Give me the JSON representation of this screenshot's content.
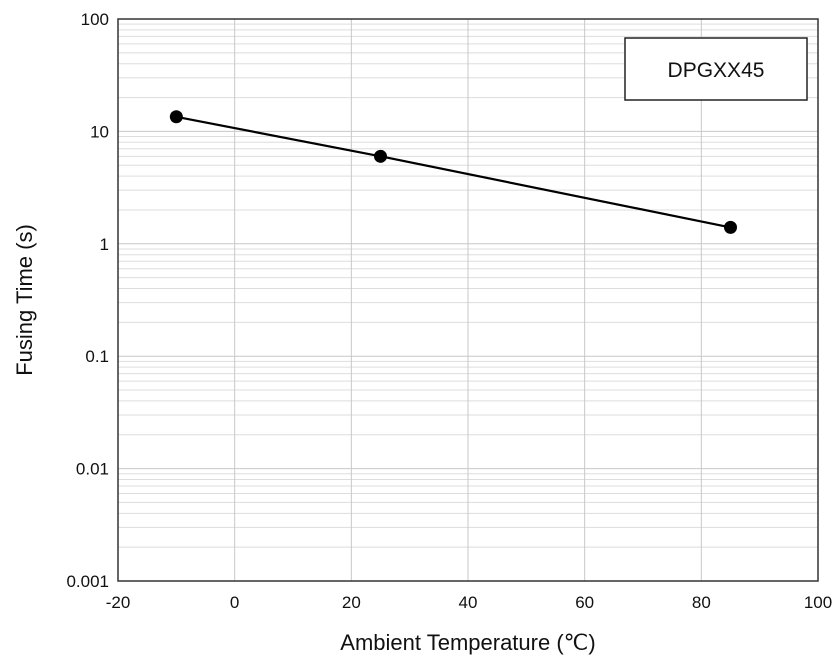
{
  "chart_data": {
    "type": "line",
    "title": "",
    "xlabel": "Ambient Temperature (℃)",
    "ylabel": "Fusing Time (s)",
    "xlim": [
      -20,
      100
    ],
    "ylim": [
      0.001,
      100
    ],
    "yscale": "log",
    "grid": true,
    "x_ticks": [
      "-20",
      "0",
      "20",
      "40",
      "60",
      "80",
      "100"
    ],
    "y_ticks": [
      "0.001",
      "0.01",
      "0.1",
      "1",
      "10",
      "100"
    ],
    "legend_position": "top-right",
    "series": [
      {
        "name": "DPGXX45",
        "x": [
          -10,
          25,
          85
        ],
        "y": [
          13.5,
          6.0,
          1.4
        ]
      }
    ],
    "colors": {
      "line": "#000000",
      "grid": "#c8c8c8",
      "axis": "#333333",
      "background": "#ffffff"
    }
  }
}
